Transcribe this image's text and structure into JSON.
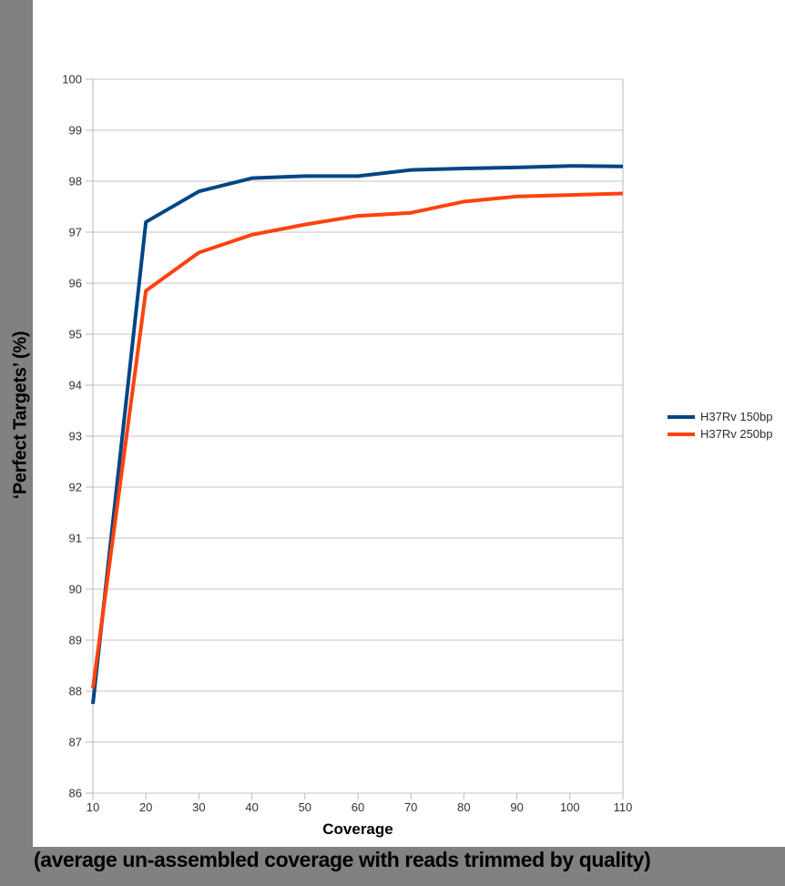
{
  "frame": {
    "caption": "(average un-assembled coverage with reads trimmed by quality)"
  },
  "colors": {
    "surround_gray": "#818181",
    "panel_white": "#ffffff",
    "gridline": "#c6c6c6",
    "axis": "#b9b9b9",
    "tick_label": "#333333",
    "series_blue": "#004586",
    "series_orange": "#ff420e"
  },
  "chart_data": {
    "type": "line",
    "title": "",
    "xlabel": "Coverage",
    "ylabel": "‘Perfect Targets’ (%)",
    "xlim": [
      10,
      110
    ],
    "ylim": [
      86,
      100
    ],
    "x_ticks": [
      10,
      20,
      30,
      40,
      50,
      60,
      70,
      80,
      90,
      100,
      110
    ],
    "y_ticks": [
      86,
      87,
      88,
      89,
      90,
      91,
      92,
      93,
      94,
      95,
      96,
      97,
      98,
      99,
      100
    ],
    "grid": "horizontal",
    "legend_position": "right",
    "x": [
      10,
      20,
      30,
      40,
      50,
      60,
      70,
      80,
      90,
      100,
      110
    ],
    "series": [
      {
        "name": "H37Rv 150bp",
        "color": "#004586",
        "values": [
          87.75,
          97.2,
          97.8,
          98.06,
          98.1,
          98.1,
          98.22,
          98.25,
          98.27,
          98.3,
          98.29
        ]
      },
      {
        "name": "H37Rv 250bp",
        "color": "#ff420e",
        "values": [
          88.05,
          95.85,
          96.6,
          96.95,
          97.15,
          97.32,
          97.38,
          97.6,
          97.7,
          97.73,
          97.76
        ]
      }
    ]
  }
}
